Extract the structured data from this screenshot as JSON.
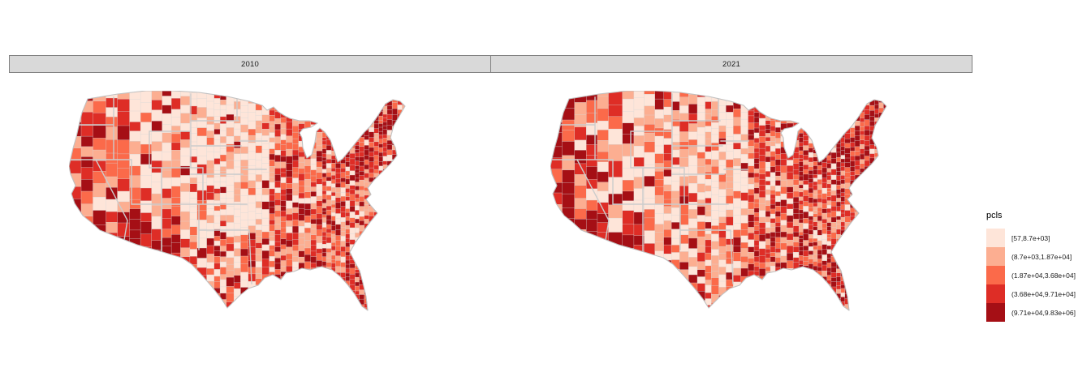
{
  "figure": {
    "background": "#ffffff",
    "kind": "faceted county choropleth map of the contiguous United States"
  },
  "facets": [
    {
      "label": "2010"
    },
    {
      "label": "2021"
    }
  ],
  "strip": {
    "background": "#d9d9d9",
    "border": "#808080",
    "text_color": "#1a1a1a"
  },
  "legend": {
    "title": "pcls",
    "items": [
      {
        "label": "[57,8.7e+03]",
        "color": "#fee5d9"
      },
      {
        "label": "(8.7e+03,1.87e+04]",
        "color": "#fcae91"
      },
      {
        "label": "(1.87e+04,3.68e+04]",
        "color": "#fb6a4a"
      },
      {
        "label": "(3.68e+04,9.71e+04]",
        "color": "#de2d26"
      },
      {
        "label": "(9.71e+04,9.83e+06]",
        "color": "#a50f15"
      }
    ]
  },
  "map_style": {
    "county_border": "#d8d8d8",
    "state_border": "#cccccc",
    "outline": "#c0c0c0"
  },
  "chart_data": {
    "type": "choropleth-map",
    "title": "",
    "geography": "contiguous United States, county level",
    "facet_variable_values": [
      "2010",
      "2021"
    ],
    "legend_title": "pcls",
    "bins": [
      {
        "range": "[57,8.7e+03]",
        "color": "#fee5d9"
      },
      {
        "range": "(8.7e+03,1.87e+04]",
        "color": "#fcae91"
      },
      {
        "range": "(1.87e+04,3.68e+04]",
        "color": "#fb6a4a"
      },
      {
        "range": "(3.68e+04,9.71e+04]",
        "color": "#de2d26"
      },
      {
        "range": "(9.71e+04,9.83e+06]",
        "color": "#a50f15"
      }
    ],
    "value_range": [
      57,
      9830000
    ],
    "legend_position": "right",
    "visual_pattern_notes": "Great Plains mostly lightest bin; Pacific coast, Arizona/New Mexico, Northeast corridor and Florida darkest bins; 2021 facet slightly darker overall than 2010"
  }
}
